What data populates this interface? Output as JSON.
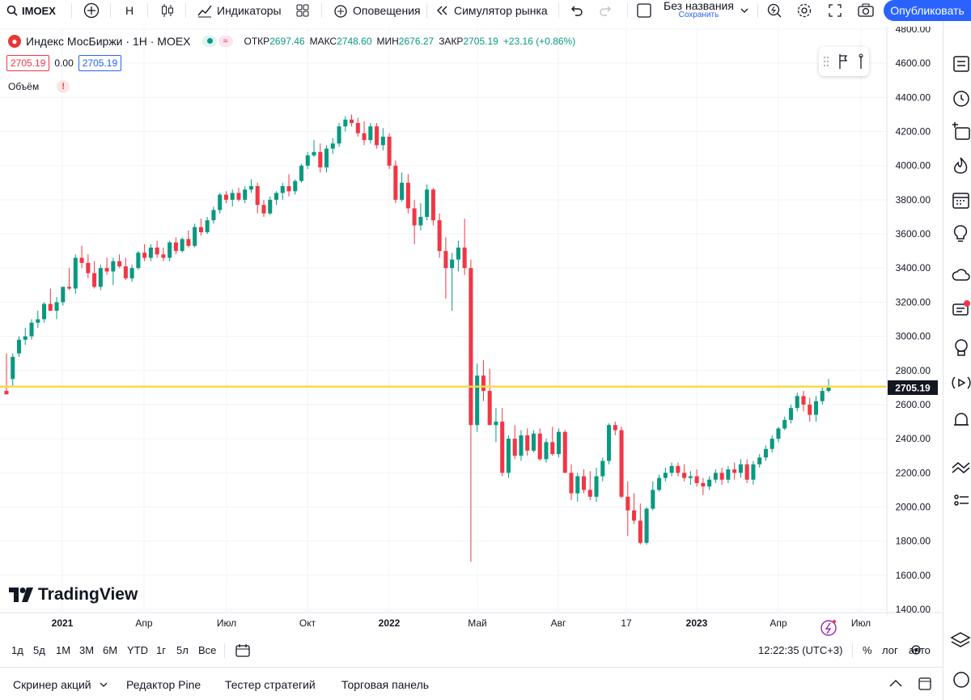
{
  "toolbar": {
    "symbol": "IMOEX",
    "interval": "H",
    "indicators_label": "Индикаторы",
    "alerts_label": "Оповещения",
    "replay_label": "Симулятор рынка",
    "layout_title": "Без названия",
    "layout_sub": "Сохранить",
    "publish_label": "Опубликовать"
  },
  "legend": {
    "name": "Индекс МосБиржи · 1Н · MOEX",
    "open_label": "ОТКР",
    "open": "2697.46",
    "high_label": "МАКС",
    "high": "2748.60",
    "low_label": "МИН",
    "low": "2676.27",
    "close_label": "ЗАКР",
    "close": "2705.19",
    "change": "+23.16 (+0.86%)",
    "bid": "2705.19",
    "spread": "0.00",
    "ask": "2705.19",
    "volume_label": "Объём",
    "warn": "!"
  },
  "price_axis": {
    "labels": [
      "4800.00",
      "4600.00",
      "4400.00",
      "4200.00",
      "4000.00",
      "3800.00",
      "3600.00",
      "3400.00",
      "3200.00",
      "3000.00",
      "2800.00",
      "2600.00",
      "2400.00",
      "2200.00",
      "2000.00",
      "1800.00",
      "1600.00",
      "1400.00"
    ],
    "last_price": "2705.19"
  },
  "time_axis": {
    "labels": [
      "2021",
      "Апр",
      "Июл",
      "Окт",
      "2022",
      "Май",
      "Авг",
      "17",
      "2023",
      "Апр",
      "Июл"
    ]
  },
  "brand": "TradingView",
  "ranges": [
    "1д",
    "5д",
    "1М",
    "3М",
    "6М",
    "YTD",
    "1г",
    "5л",
    "Все"
  ],
  "clock": "12:22:35 (UTC+3)",
  "scale_opts": {
    "percent": "%",
    "log": "лог",
    "auto": "авто"
  },
  "bottom_panels": [
    "Скринер акций",
    "Редактор Pine",
    "Тестер стратегий",
    "Торговая панель"
  ],
  "colors": {
    "up": "#089981",
    "down": "#f23645",
    "hline": "#f7d94c",
    "accent": "#2962ff"
  },
  "chart_data": {
    "type": "candlestick",
    "ylim": [
      1400,
      4800
    ],
    "hline": 2705.19,
    "candles": [
      [
        2680,
        2900,
        2660,
        2660
      ],
      [
        2750,
        2900,
        2700,
        2880
      ],
      [
        2900,
        3000,
        2880,
        2980
      ],
      [
        2980,
        3050,
        2950,
        3000
      ],
      [
        3000,
        3100,
        2980,
        3080
      ],
      [
        3080,
        3150,
        3050,
        3100
      ],
      [
        3100,
        3200,
        3080,
        3190
      ],
      [
        3190,
        3280,
        3150,
        3150
      ],
      [
        3150,
        3230,
        3100,
        3200
      ],
      [
        3200,
        3290,
        3180,
        3290
      ],
      [
        3290,
        3400,
        3270,
        3280
      ],
      [
        3280,
        3480,
        3250,
        3460
      ],
      [
        3460,
        3530,
        3400,
        3430
      ],
      [
        3430,
        3480,
        3340,
        3370
      ],
      [
        3370,
        3440,
        3280,
        3290
      ],
      [
        3290,
        3420,
        3270,
        3400
      ],
      [
        3400,
        3460,
        3360,
        3380
      ],
      [
        3380,
        3460,
        3300,
        3440
      ],
      [
        3440,
        3480,
        3400,
        3410
      ],
      [
        3410,
        3460,
        3330,
        3340
      ],
      [
        3340,
        3420,
        3320,
        3400
      ],
      [
        3400,
        3500,
        3390,
        3490
      ],
      [
        3490,
        3540,
        3440,
        3460
      ],
      [
        3460,
        3540,
        3440,
        3520
      ],
      [
        3520,
        3560,
        3460,
        3480
      ],
      [
        3480,
        3520,
        3440,
        3460
      ],
      [
        3460,
        3560,
        3440,
        3550
      ],
      [
        3550,
        3580,
        3480,
        3500
      ],
      [
        3500,
        3580,
        3490,
        3570
      ],
      [
        3570,
        3620,
        3520,
        3530
      ],
      [
        3530,
        3660,
        3520,
        3640
      ],
      [
        3640,
        3690,
        3590,
        3610
      ],
      [
        3610,
        3700,
        3600,
        3680
      ],
      [
        3680,
        3760,
        3660,
        3740
      ],
      [
        3740,
        3840,
        3720,
        3830
      ],
      [
        3830,
        3850,
        3780,
        3800
      ],
      [
        3800,
        3860,
        3760,
        3840
      ],
      [
        3840,
        3870,
        3790,
        3800
      ],
      [
        3800,
        3880,
        3780,
        3860
      ],
      [
        3860,
        3920,
        3840,
        3880
      ],
      [
        3880,
        3900,
        3720,
        3770
      ],
      [
        3770,
        3800,
        3700,
        3720
      ],
      [
        3720,
        3820,
        3710,
        3800
      ],
      [
        3800,
        3850,
        3770,
        3840
      ],
      [
        3840,
        3900,
        3800,
        3880
      ],
      [
        3880,
        3950,
        3820,
        3850
      ],
      [
        3850,
        3920,
        3830,
        3910
      ],
      [
        3910,
        4010,
        3900,
        4000
      ],
      [
        4000,
        4080,
        3980,
        4060
      ],
      [
        4060,
        4150,
        4050,
        4080
      ],
      [
        4080,
        4130,
        3960,
        3990
      ],
      [
        3990,
        4120,
        3960,
        4100
      ],
      [
        4100,
        4160,
        4070,
        4130
      ],
      [
        4130,
        4250,
        4110,
        4230
      ],
      [
        4230,
        4290,
        4200,
        4270
      ],
      [
        4270,
        4300,
        4230,
        4250
      ],
      [
        4250,
        4280,
        4170,
        4190
      ],
      [
        4190,
        4260,
        4120,
        4150
      ],
      [
        4150,
        4250,
        4130,
        4230
      ],
      [
        4230,
        4250,
        4100,
        4120
      ],
      [
        4120,
        4220,
        4090,
        4170
      ],
      [
        4170,
        4190,
        3980,
        4000
      ],
      [
        4000,
        4030,
        3780,
        3800
      ],
      [
        3800,
        3960,
        3790,
        3900
      ],
      [
        3900,
        3950,
        3720,
        3750
      ],
      [
        3750,
        3800,
        3540,
        3650
      ],
      [
        3650,
        3780,
        3620,
        3700
      ],
      [
        3700,
        3890,
        3680,
        3860
      ],
      [
        3860,
        3870,
        3650,
        3680
      ],
      [
        3680,
        3720,
        3460,
        3500
      ],
      [
        3500,
        3580,
        3220,
        3400
      ],
      [
        3400,
        3490,
        3150,
        3450
      ],
      [
        3450,
        3560,
        3380,
        3520
      ],
      [
        3520,
        3690,
        3360,
        3400
      ],
      [
        3400,
        3450,
        1680,
        2480
      ],
      [
        2480,
        2840,
        2440,
        2770
      ],
      [
        2770,
        2860,
        2620,
        2680
      ],
      [
        2680,
        2810,
        2480,
        2480
      ],
      [
        2480,
        2580,
        2380,
        2500
      ],
      [
        2500,
        2580,
        2180,
        2200
      ],
      [
        2200,
        2420,
        2170,
        2400
      ],
      [
        2400,
        2480,
        2280,
        2300
      ],
      [
        2300,
        2450,
        2270,
        2420
      ],
      [
        2420,
        2460,
        2300,
        2330
      ],
      [
        2330,
        2450,
        2320,
        2430
      ],
      [
        2430,
        2460,
        2270,
        2280
      ],
      [
        2280,
        2400,
        2260,
        2380
      ],
      [
        2380,
        2470,
        2300,
        2310
      ],
      [
        2310,
        2460,
        2290,
        2440
      ],
      [
        2440,
        2450,
        2200,
        2200
      ],
      [
        2200,
        2250,
        2040,
        2080
      ],
      [
        2080,
        2200,
        2030,
        2180
      ],
      [
        2180,
        2220,
        2080,
        2100
      ],
      [
        2100,
        2210,
        2040,
        2060
      ],
      [
        2060,
        2230,
        2030,
        2180
      ],
      [
        2180,
        2290,
        2150,
        2270
      ],
      [
        2270,
        2490,
        2250,
        2480
      ],
      [
        2480,
        2500,
        2420,
        2450
      ],
      [
        2450,
        2470,
        2050,
        2060
      ],
      [
        2060,
        2150,
        1830,
        1980
      ],
      [
        1980,
        2080,
        1900,
        1920
      ],
      [
        1920,
        2020,
        1780,
        1790
      ],
      [
        1790,
        2000,
        1780,
        1990
      ],
      [
        1990,
        2150,
        1980,
        2100
      ],
      [
        2100,
        2190,
        2090,
        2170
      ],
      [
        2170,
        2230,
        2150,
        2200
      ],
      [
        2200,
        2260,
        2180,
        2240
      ],
      [
        2240,
        2260,
        2180,
        2200
      ],
      [
        2200,
        2250,
        2150,
        2170
      ],
      [
        2170,
        2210,
        2130,
        2180
      ],
      [
        2180,
        2220,
        2120,
        2140
      ],
      [
        2140,
        2170,
        2070,
        2120
      ],
      [
        2120,
        2180,
        2100,
        2160
      ],
      [
        2160,
        2220,
        2140,
        2200
      ],
      [
        2200,
        2230,
        2130,
        2160
      ],
      [
        2160,
        2240,
        2140,
        2220
      ],
      [
        2220,
        2260,
        2160,
        2200
      ],
      [
        2200,
        2280,
        2170,
        2250
      ],
      [
        2250,
        2280,
        2140,
        2160
      ],
      [
        2160,
        2270,
        2130,
        2250
      ],
      [
        2250,
        2310,
        2230,
        2290
      ],
      [
        2290,
        2360,
        2270,
        2340
      ],
      [
        2340,
        2420,
        2320,
        2400
      ],
      [
        2400,
        2470,
        2380,
        2460
      ],
      [
        2460,
        2530,
        2450,
        2510
      ],
      [
        2510,
        2600,
        2490,
        2580
      ],
      [
        2580,
        2670,
        2560,
        2650
      ],
      [
        2650,
        2680,
        2560,
        2600
      ],
      [
        2600,
        2640,
        2500,
        2540
      ],
      [
        2540,
        2650,
        2500,
        2620
      ],
      [
        2620,
        2700,
        2600,
        2680
      ],
      [
        2680,
        2750,
        2670,
        2705
      ]
    ]
  }
}
